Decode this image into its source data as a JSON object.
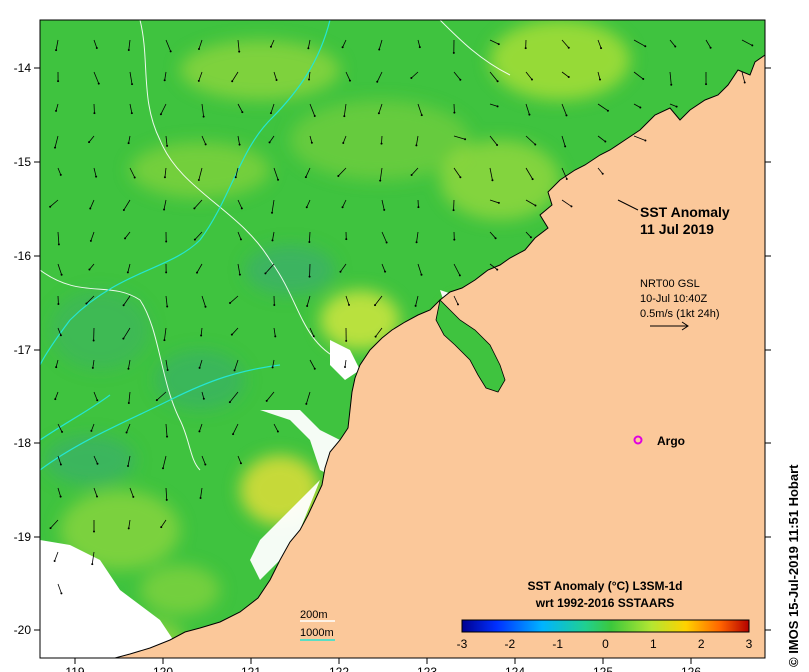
{
  "map": {
    "title_line1": "SST Anomaly",
    "title_line2": "11 Jul 2019",
    "current": {
      "line1": "NRT00 GSL",
      "line2": "10-Jul 10:40Z",
      "line3": "0.5m/s (1kt 24h)"
    },
    "argo_label": "Argo",
    "depth_legend": {
      "label_200": "200m",
      "label_1000": "1000m",
      "color_200": "#ffffff",
      "color_1000": "#25e6d2"
    },
    "credit": "© IMOS 15-Jul-2019 11:51 Hobart",
    "lon_ticks": [
      "119",
      "120",
      "121",
      "122",
      "123",
      "124",
      "125",
      "126"
    ],
    "lat_ticks": [
      "-14",
      "-15",
      "-16",
      "-17",
      "-18",
      "-19",
      "-20"
    ],
    "colorbar": {
      "title_line1": "SST Anomaly (°C) L3SM-1d",
      "title_line2": "wrt 1992-2016 SSTAARS",
      "ticks": [
        "-3",
        "-2",
        "-1",
        "0",
        "1",
        "2",
        "3"
      ],
      "colors": [
        "#00008f",
        "#0030ff",
        "#00b4ff",
        "#20d090",
        "#3cc83c",
        "#b4e632",
        "#ffd200",
        "#ff6400",
        "#b40000"
      ]
    },
    "colors": {
      "land": "#fbc89a",
      "sea_base": "#3fc33f",
      "warm": "#d4e84a",
      "cool": "#3aa878",
      "argo": "#e000e0"
    }
  }
}
